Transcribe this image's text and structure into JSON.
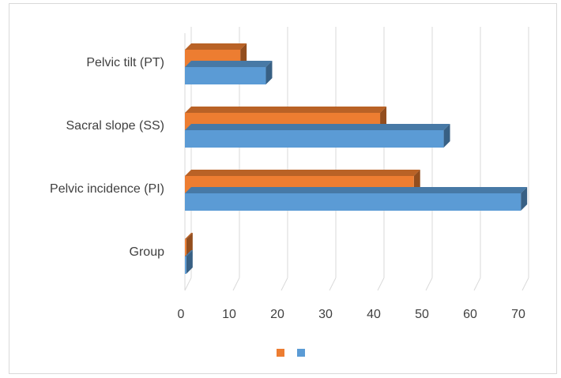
{
  "chart_data": {
    "type": "bar",
    "orientation": "horizontal",
    "style": "3d-clustered",
    "categories": [
      "Group",
      "Pelvic incidence (PI)",
      "Sacral slope (SS)",
      "Pelvic tilt (PT)"
    ],
    "series": [
      {
        "values": [
          0.3,
          69.7,
          53.7,
          16.8
        ],
        "color": "#5b9bd5"
      },
      {
        "values": [
          0.3,
          47.5,
          40.5,
          11.5
        ],
        "color": "#ed7d31"
      }
    ],
    "xlim": [
      0,
      70
    ],
    "xticks": [
      "0",
      "10",
      "20",
      "30",
      "40",
      "50",
      "60",
      "70"
    ],
    "title": "",
    "xlabel": "",
    "ylabel": "",
    "grid": "vertical",
    "legend": "bottom"
  }
}
